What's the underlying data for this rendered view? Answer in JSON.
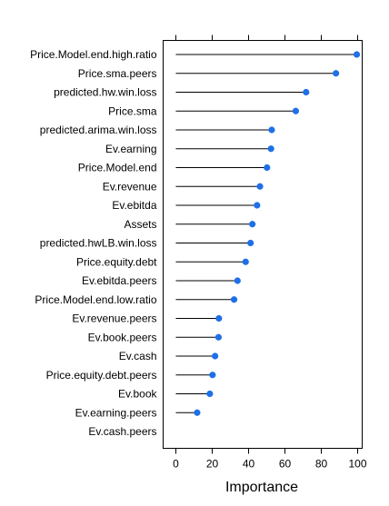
{
  "chart_data": {
    "type": "dot",
    "orientation": "horizontal",
    "title": "",
    "xlabel": "Importance",
    "ylabel": "",
    "xlim": [
      -7,
      103
    ],
    "xticks": [
      0,
      20,
      40,
      60,
      80,
      100
    ],
    "xtick_labels": [
      "0",
      "20",
      "40",
      "60",
      "80",
      "100"
    ],
    "grid": false,
    "legend": "none",
    "point_color": "#1f6fe8",
    "categories": [
      "Price.Model.end.high.ratio",
      "Price.sma.peers",
      "predicted.hw.win.loss",
      "Price.sma",
      "predicted.arima.win.loss",
      "Ev.earning",
      "Price.Model.end",
      "Ev.revenue",
      "Ev.ebitda",
      "Assets",
      "predicted.hwLB.win.loss",
      "Price.equity.debt",
      "Ev.ebitda.peers",
      "Price.Model.end.low.ratio",
      "Ev.revenue.peers",
      "Ev.book.peers",
      "Ev.cash",
      "Price.equity.debt.peers",
      "Ev.book",
      "Ev.earning.peers",
      "Ev.cash.peers"
    ],
    "values": [
      100,
      88.5,
      72,
      66.3,
      53,
      52.6,
      50.4,
      46.5,
      44.9,
      42.3,
      41.3,
      38.6,
      34.1,
      32.2,
      23.8,
      23.6,
      21.7,
      20.3,
      18.8,
      11.8,
      0
    ]
  }
}
